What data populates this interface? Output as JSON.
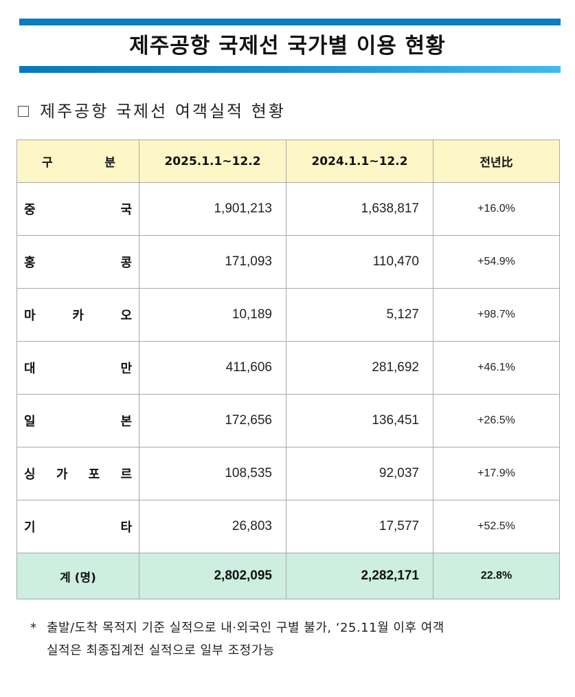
{
  "header": {
    "title": "제주공항 국제선 국가별 이용 현황",
    "bar_top_color": "#0a7dc0",
    "bar_bottom_gradient": [
      "#0a78bc",
      "#3fbaf2"
    ]
  },
  "section": {
    "bullet_icon": "checkbox-square-icon",
    "heading": "제주공항 국제선 여객실적 현황"
  },
  "table": {
    "header_bg": "#fdf7c8",
    "total_bg": "#cdeee0",
    "columns": {
      "category_chars": [
        "구",
        "분"
      ],
      "col2": "2025.1.1~12.2",
      "col3": "2024.1.1~12.2",
      "col4": "전년比"
    },
    "rows": [
      {
        "chars": [
          "중",
          "국"
        ],
        "y2025": "1,901,213",
        "y2024": "1,638,817",
        "change": "+16.0%"
      },
      {
        "chars": [
          "홍",
          "콩"
        ],
        "y2025": "171,093",
        "y2024": "110,470",
        "change": "+54.9%"
      },
      {
        "chars": [
          "마",
          "카",
          "오"
        ],
        "y2025": "10,189",
        "y2024": "5,127",
        "change": "+98.7%"
      },
      {
        "chars": [
          "대",
          "만"
        ],
        "y2025": "411,606",
        "y2024": "281,692",
        "change": "+46.1%"
      },
      {
        "chars": [
          "일",
          "본"
        ],
        "y2025": "172,656",
        "y2024": "136,451",
        "change": "+26.5%"
      },
      {
        "chars": [
          "싱",
          "가",
          "포",
          "르"
        ],
        "y2025": "108,535",
        "y2024": "92,037",
        "change": "+17.9%"
      },
      {
        "chars": [
          "기",
          "타"
        ],
        "y2025": "26,803",
        "y2024": "17,577",
        "change": "+52.5%"
      }
    ],
    "total": {
      "label": "계 (명)",
      "y2025": "2,802,095",
      "y2024": "2,282,171",
      "change": "22.8%"
    }
  },
  "footnote": {
    "marker": "*",
    "line1": "출발/도착 목적지 기준 실적으로 내·외국인 구별 불가, ‘25.11월 이후 여객",
    "line2": "실적은 최종집계전 실적으로 일부 조정가능"
  }
}
